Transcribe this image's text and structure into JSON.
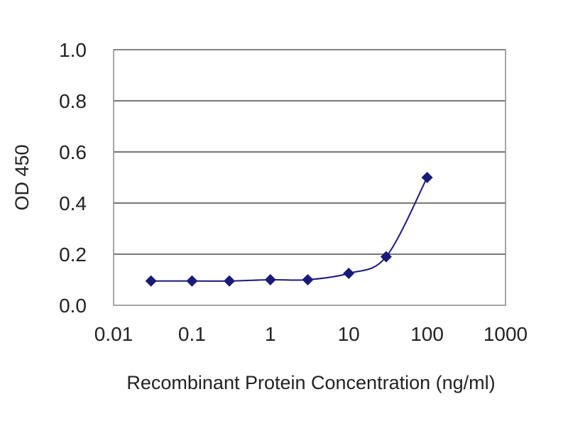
{
  "chart_data": {
    "type": "line",
    "title": "",
    "xlabel": "Recombinant Protein Concentration (ng/ml)",
    "ylabel": "OD 450",
    "x_scale": "log",
    "xlim": [
      0.01,
      1000
    ],
    "ylim": [
      0.0,
      1.0
    ],
    "x_ticks": [
      0.01,
      0.1,
      1,
      10,
      100,
      1000
    ],
    "x_tick_labels": [
      "0.01",
      "0.1",
      "1",
      "10",
      "100",
      "1000"
    ],
    "y_ticks": [
      0.0,
      0.2,
      0.4,
      0.6,
      0.8,
      1.0
    ],
    "y_tick_labels": [
      "0.0",
      "0.2",
      "0.4",
      "0.6",
      "0.8",
      "1.0"
    ],
    "grid": "horizontal",
    "legend": "none",
    "series": [
      {
        "x": [
          0.03,
          0.1,
          0.3,
          1,
          3,
          10,
          30,
          100
        ],
        "y": [
          0.095,
          0.095,
          0.095,
          0.1,
          0.1,
          0.125,
          0.19,
          0.5
        ],
        "color": "#1a1a7a",
        "marker": "diamond"
      }
    ]
  }
}
